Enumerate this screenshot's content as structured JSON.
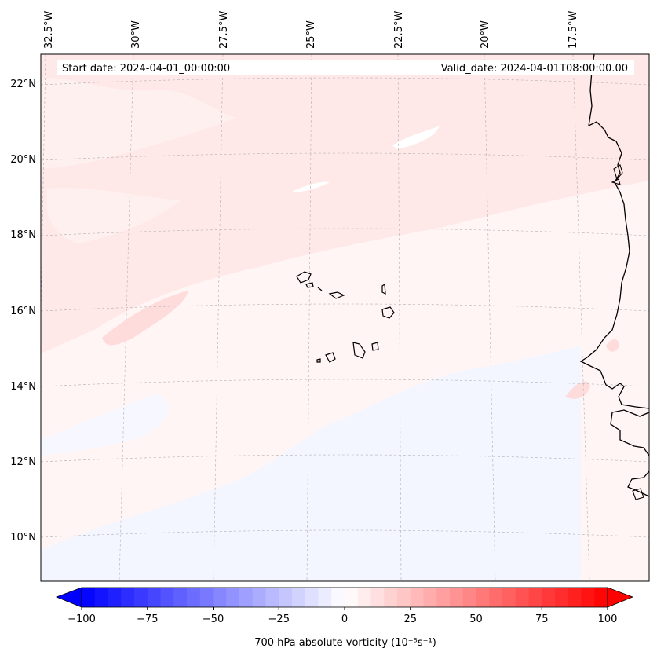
{
  "map": {
    "start_label": "Start date: 2024-04-01_00:00:00",
    "valid_label": "Valid_date: 2024-04-01T08:00:00.00",
    "lon_labels": [
      "32.5°W",
      "30°W",
      "27.5°W",
      "25°W",
      "22.5°W",
      "20°W",
      "17.5°W"
    ],
    "lat_labels": [
      "22°N",
      "20°N",
      "18°N",
      "16°N",
      "14°N",
      "12°N",
      "10°N"
    ],
    "field": "700 hPa absolute vorticity",
    "colors": {
      "land_outline": "#000000",
      "gridline": "#b0b0b0",
      "weak_positive": "#ffe8e8",
      "moderate_positive": "#ffdcdc",
      "weak_negative": "#f3f5ff"
    }
  },
  "colorbar": {
    "label": "700 hPa absolute vorticity (10⁻⁵s⁻¹)",
    "min": -100,
    "max": 100,
    "ticks": [
      "−100",
      "−75",
      "−50",
      "−25",
      "0",
      "25",
      "50",
      "75",
      "100"
    ],
    "colors": {
      "low": "#0000ff",
      "mid": "#ffffff",
      "high": "#ff0000"
    }
  }
}
